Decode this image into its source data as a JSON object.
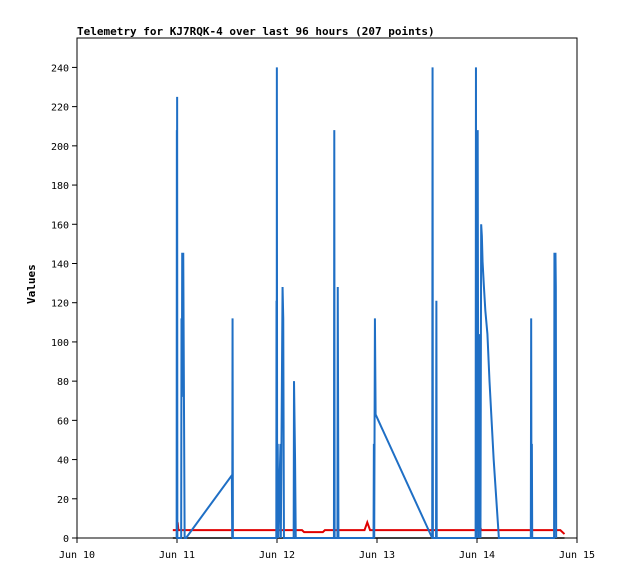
{
  "chart_data": {
    "type": "line",
    "title": "Telemetry for KJ7RQK-4 over last 96 hours (207 points)",
    "xlabel": "",
    "ylabel": "Values",
    "x_tick_labels": [
      "Jun 10",
      "Jun 11",
      "Jun 12",
      "Jun 13",
      "Jun 14",
      "Jun 15"
    ],
    "xlim": [
      "Jun 10",
      "Jun 15"
    ],
    "ylim": [
      0,
      255
    ],
    "y_ticks": [
      0,
      20,
      40,
      60,
      80,
      100,
      120,
      140,
      160,
      180,
      200,
      220,
      240
    ],
    "grid": false,
    "legend": "none",
    "series": [
      {
        "color": "#000000",
        "points": [
          [
            "Jun 10 23:00",
            0
          ],
          [
            "Jun 14 21:00",
            0
          ]
        ]
      },
      {
        "color": "#e00000",
        "points": [
          [
            "Jun 10 23:00",
            4
          ],
          [
            "Jun 11 00:05",
            4
          ],
          [
            "Jun 11 00:10",
            8
          ],
          [
            "Jun 11 00:20",
            4
          ],
          [
            "Jun 11 18:00",
            4
          ],
          [
            "Jun 11 19:00",
            4
          ],
          [
            "Jun 12 06:00",
            4
          ],
          [
            "Jun 12 06:30",
            3
          ],
          [
            "Jun 12 11:00",
            3
          ],
          [
            "Jun 12 11:30",
            4
          ],
          [
            "Jun 12 21:00",
            4
          ],
          [
            "Jun 12 21:40",
            8
          ],
          [
            "Jun 12 22:20",
            4
          ],
          [
            "Jun 13 12:00",
            4
          ],
          [
            "Jun 14 00:00",
            4
          ],
          [
            "Jun 14 00:30",
            8
          ],
          [
            "Jun 14 01:00",
            4
          ],
          [
            "Jun 14 20:00",
            4
          ],
          [
            "Jun 14 21:00",
            2
          ]
        ]
      },
      {
        "color": "#1f6fc5",
        "points": [
          [
            "Jun 10 23:55",
            0
          ],
          [
            "Jun 10 23:58",
            208
          ],
          [
            "Jun 11 00:00",
            0
          ],
          [
            "Jun 11 00:02",
            225
          ],
          [
            "Jun 11 00:05",
            0
          ],
          [
            "Jun 11 01:00",
            0
          ],
          [
            "Jun 11 01:05",
            112
          ],
          [
            "Jun 11 01:10",
            72
          ],
          [
            "Jun 11 01:15",
            145
          ],
          [
            "Jun 11 01:30",
            145
          ],
          [
            "Jun 11 01:40",
            72
          ],
          [
            "Jun 11 01:50",
            0
          ],
          [
            "Jun 11 02:10",
            0
          ],
          [
            "Jun 11 13:10",
            32
          ],
          [
            "Jun 11 13:15",
            0
          ],
          [
            "Jun 11 13:20",
            112
          ],
          [
            "Jun 11 13:25",
            0
          ],
          [
            "Jun 11 23:50",
            0
          ],
          [
            "Jun 11 23:53",
            121
          ],
          [
            "Jun 11 23:56",
            0
          ],
          [
            "Jun 11 23:58",
            240
          ],
          [
            "Jun 12 00:02",
            0
          ],
          [
            "Jun 12 00:10",
            48
          ],
          [
            "Jun 12 00:20",
            0
          ],
          [
            "Jun 12 00:50",
            48
          ],
          [
            "Jun 12 00:55",
            0
          ],
          [
            "Jun 12 01:20",
            128
          ],
          [
            "Jun 12 01:30",
            112
          ],
          [
            "Jun 12 01:40",
            0
          ],
          [
            "Jun 12 04:00",
            0
          ],
          [
            "Jun 12 04:05",
            80
          ],
          [
            "Jun 12 04:20",
            40
          ],
          [
            "Jun 12 04:30",
            0
          ],
          [
            "Jun 12 13:40",
            0
          ],
          [
            "Jun 12 13:45",
            208
          ],
          [
            "Jun 12 13:50",
            0
          ],
          [
            "Jun 12 14:30",
            0
          ],
          [
            "Jun 12 14:35",
            128
          ],
          [
            "Jun 12 14:45",
            0
          ],
          [
            "Jun 12 23:10",
            0
          ],
          [
            "Jun 12 23:15",
            48
          ],
          [
            "Jun 12 23:20",
            0
          ],
          [
            "Jun 12 23:30",
            112
          ],
          [
            "Jun 12 23:40",
            63
          ],
          [
            "Jun 13 13:15",
            0
          ],
          [
            "Jun 13 13:20",
            240
          ],
          [
            "Jun 13 13:25",
            0
          ],
          [
            "Jun 13 14:10",
            0
          ],
          [
            "Jun 13 14:15",
            121
          ],
          [
            "Jun 13 14:20",
            0
          ],
          [
            "Jun 13 23:40",
            0
          ],
          [
            "Jun 13 23:45",
            240
          ],
          [
            "Jun 13 23:50",
            0
          ],
          [
            "Jun 14 00:10",
            208
          ],
          [
            "Jun 14 00:20",
            0
          ],
          [
            "Jun 14 00:40",
            104
          ],
          [
            "Jun 14 00:50",
            0
          ],
          [
            "Jun 14 01:00",
            160
          ],
          [
            "Jun 14 01:10",
            154
          ],
          [
            "Jun 14 01:20",
            141
          ],
          [
            "Jun 14 01:40",
            128
          ],
          [
            "Jun 14 02:00",
            116
          ],
          [
            "Jun 14 02:30",
            104
          ],
          [
            "Jun 14 03:00",
            80
          ],
          [
            "Jun 14 04:00",
            40
          ],
          [
            "Jun 14 05:00",
            8
          ],
          [
            "Jun 14 05:15",
            0
          ],
          [
            "Jun 14 12:55",
            0
          ],
          [
            "Jun 14 13:00",
            112
          ],
          [
            "Jun 14 13:05",
            0
          ],
          [
            "Jun 14 13:10",
            48
          ],
          [
            "Jun 14 13:15",
            0
          ],
          [
            "Jun 14 18:30",
            0
          ],
          [
            "Jun 14 18:35",
            145
          ],
          [
            "Jun 14 18:50",
            145
          ],
          [
            "Jun 14 18:55",
            128
          ],
          [
            "Jun 14 19:00",
            0
          ]
        ]
      }
    ]
  }
}
